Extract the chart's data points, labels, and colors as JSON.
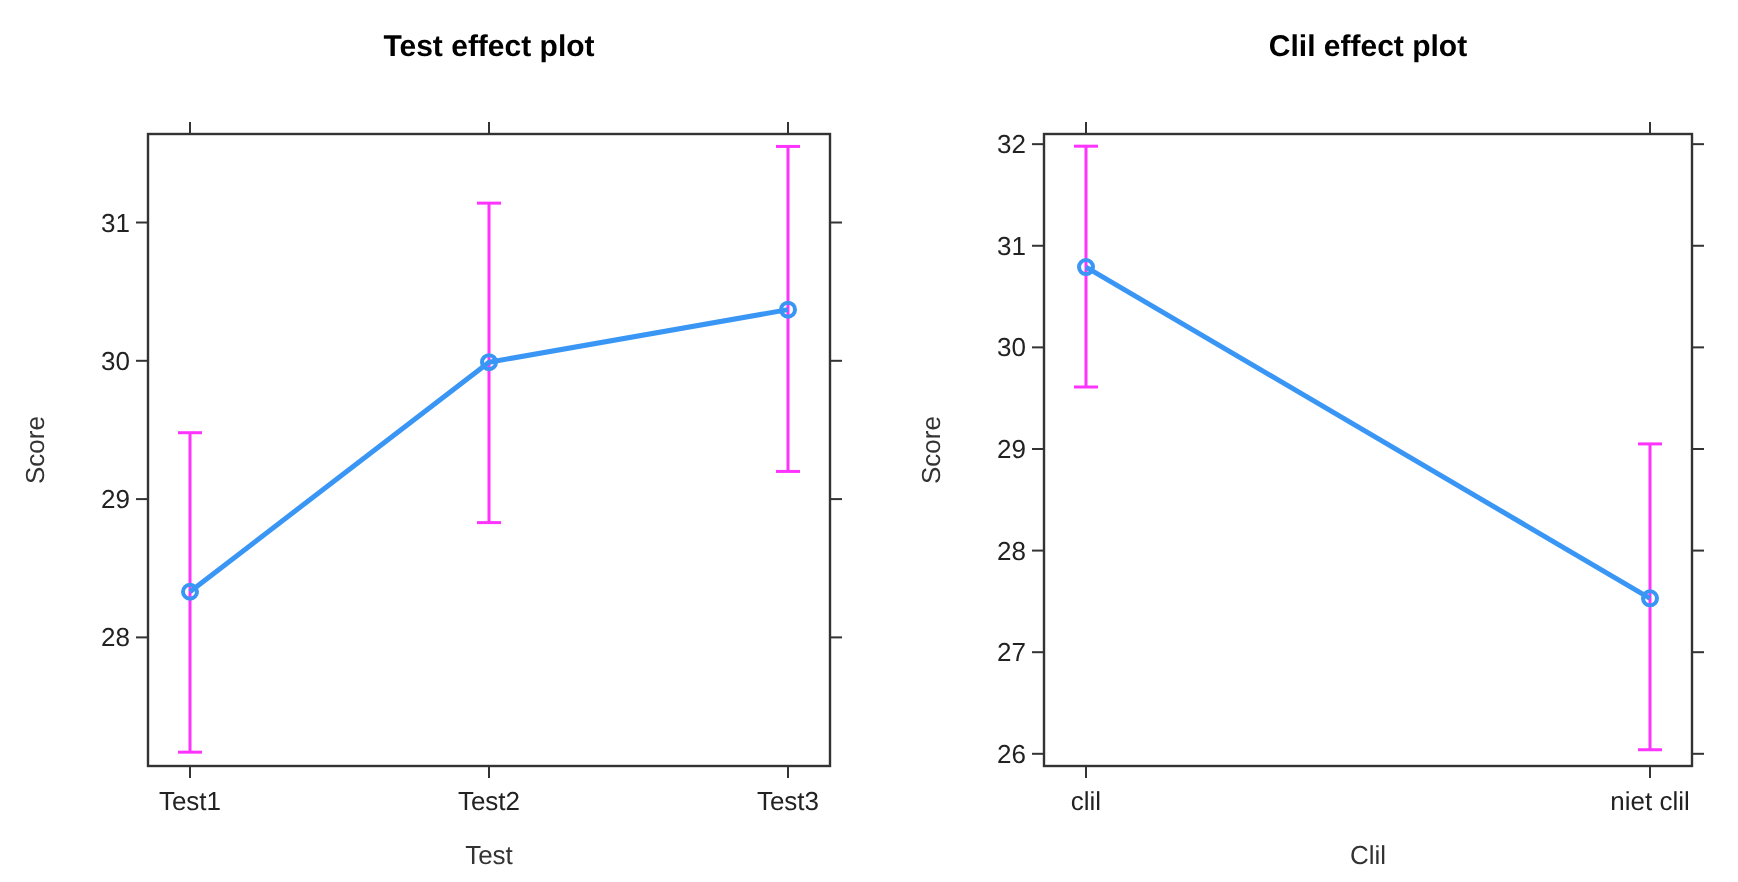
{
  "chart_data": [
    {
      "type": "line",
      "title": "Test effect plot",
      "xlabel": "Test",
      "ylabel": "Score",
      "categories": [
        "Test1",
        "Test2",
        "Test3"
      ],
      "series": [
        {
          "color": "#3a96f5",
          "values": [
            28.33,
            29.99,
            30.37
          ],
          "errors": [
            [
              27.17,
              29.48
            ],
            [
              28.83,
              31.14
            ],
            [
              29.2,
              31.55
            ]
          ]
        }
      ],
      "ylim": [
        27.07,
        31.64
      ],
      "yticks": [
        28,
        29,
        30,
        31
      ],
      "grid": false,
      "marker": "circle",
      "line_style": "solid"
    },
    {
      "type": "line",
      "title": "Clil effect plot",
      "xlabel": "Clil",
      "ylabel": "Score",
      "categories": [
        "clil",
        "niet clil"
      ],
      "series": [
        {
          "color": "#3a96f5",
          "values": [
            30.79,
            27.53
          ],
          "errors": [
            [
              29.61,
              31.98
            ],
            [
              26.04,
              29.05
            ]
          ]
        }
      ],
      "ylim": [
        25.88,
        32.1
      ],
      "yticks": [
        26,
        27,
        28,
        29,
        30,
        31,
        32
      ],
      "grid": false,
      "marker": "circle",
      "line_style": "solid"
    }
  ]
}
